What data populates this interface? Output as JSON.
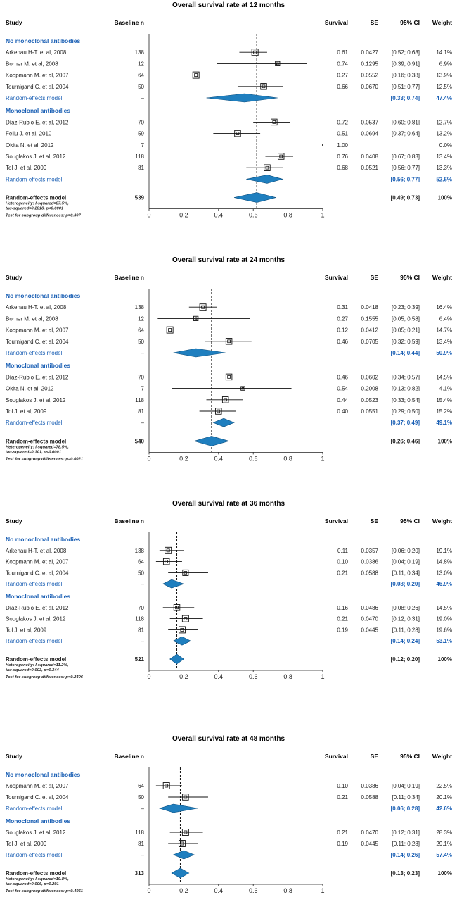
{
  "chart_data": [
    {
      "type": "forest",
      "title": "Overall survival rate at 12 months",
      "xlim": [
        0,
        1
      ],
      "ticks": [
        "0",
        "0.2",
        "0.4",
        "0.6",
        "0.8",
        "1"
      ],
      "reference_line": 0.62,
      "headers": {
        "study": "Study",
        "n": "Baseline n",
        "survival": "Survival",
        "se": "SE",
        "ci": "95% CI",
        "weight": "Weight"
      },
      "rows": [
        {
          "kind": "group",
          "label": "No monoclonal antibodies"
        },
        {
          "kind": "study",
          "label": "Arkenau H-T. et al, 2008",
          "n": "138",
          "est": 0.61,
          "lo": 0.52,
          "hi": 0.68,
          "survival": "0.61",
          "se": "0.0427",
          "ci": "[0.52; 0.68]",
          "weight": "14.1%",
          "box": 1.0
        },
        {
          "kind": "study",
          "label": "Borner M. et al, 2008",
          "n": "12",
          "est": 0.74,
          "lo": 0.39,
          "hi": 0.91,
          "survival": "0.74",
          "se": "0.1295",
          "ci": "[0.39; 0.91]",
          "weight": "6.9%",
          "box": 0.7
        },
        {
          "kind": "study",
          "label": "Koopmann M. et al, 2007",
          "n": "64",
          "est": 0.27,
          "lo": 0.16,
          "hi": 0.38,
          "survival": "0.27",
          "se": "0.0552",
          "ci": "[0.16; 0.38]",
          "weight": "13.9%",
          "box": 1.0
        },
        {
          "kind": "study",
          "label": "Tournigand C. et al, 2004",
          "n": "50",
          "est": 0.66,
          "lo": 0.51,
          "hi": 0.77,
          "survival": "0.66",
          "se": "0.0670",
          "ci": "[0.51; 0.77]",
          "weight": "12.5%",
          "box": 0.95
        },
        {
          "kind": "subtotal",
          "label": "Random-effects model",
          "n": "–",
          "est": 0.55,
          "lo": 0.33,
          "hi": 0.74,
          "ci": "[0.33; 0.74]",
          "weight": "47.4%"
        },
        {
          "kind": "group",
          "label": "Monoclonal antibodies"
        },
        {
          "kind": "study",
          "label": "Díaz-Rubio E. et al, 2012",
          "n": "70",
          "est": 0.72,
          "lo": 0.6,
          "hi": 0.81,
          "survival": "0.72",
          "se": "0.0537",
          "ci": "[0.60; 0.81]",
          "weight": "12.7%",
          "box": 0.95
        },
        {
          "kind": "study",
          "label": "Feliu J. et al, 2010",
          "n": "59",
          "est": 0.51,
          "lo": 0.37,
          "hi": 0.64,
          "survival": "0.51",
          "se": "0.0694",
          "ci": "[0.37; 0.64]",
          "weight": "13.2%",
          "box": 0.95
        },
        {
          "kind": "study",
          "label": "Okita N. et al, 2012",
          "n": "7",
          "est": 1.0,
          "lo": 1.0,
          "hi": 1.0,
          "survival": "1.00",
          "se": "",
          "ci": "",
          "weight": "0.0%",
          "box": 0.0
        },
        {
          "kind": "study",
          "label": "Souglakos J. et al, 2012",
          "n": "118",
          "est": 0.76,
          "lo": 0.67,
          "hi": 0.83,
          "survival": "0.76",
          "se": "0.0408",
          "ci": "[0.67; 0.83]",
          "weight": "13.4%",
          "box": 0.95
        },
        {
          "kind": "study",
          "label": "Tol J. et al, 2009",
          "n": "81",
          "est": 0.68,
          "lo": 0.56,
          "hi": 0.77,
          "survival": "0.68",
          "se": "0.0521",
          "ci": "[0.56; 0.77]",
          "weight": "13.3%",
          "box": 0.95
        },
        {
          "kind": "subtotal",
          "label": "Random-effects model",
          "n": "–",
          "est": 0.68,
          "lo": 0.56,
          "hi": 0.77,
          "ci": "[0.56; 0.77]",
          "weight": "52.6%"
        },
        {
          "kind": "overall",
          "label": "Random-effects model",
          "n": "539",
          "est": 0.62,
          "lo": 0.49,
          "hi": 0.73,
          "ci": "[0.49; 0.73]",
          "weight": "100%"
        }
      ],
      "notes": [
        "Heterogeneity: I-squared=87.5%,",
        "tau-squared=0.2818, p<0.0001",
        "Test for subgroup differences: p=0.307"
      ]
    },
    {
      "type": "forest",
      "title": "Overall survival rate at 24 months",
      "xlim": [
        0,
        1
      ],
      "ticks": [
        "0",
        "0.2",
        "0.4",
        "0.6",
        "0.8",
        "1"
      ],
      "reference_line": 0.36,
      "headers": {
        "study": "Study",
        "n": "Baseline n",
        "survival": "Survival",
        "se": "SE",
        "ci": "95% CI",
        "weight": "Weight"
      },
      "rows": [
        {
          "kind": "group",
          "label": "No monoclonal antibodies"
        },
        {
          "kind": "study",
          "label": "Arkenau H-T. et al, 2008",
          "n": "138",
          "est": 0.31,
          "lo": 0.23,
          "hi": 0.39,
          "survival": "0.31",
          "se": "0.0418",
          "ci": "[0.23; 0.39]",
          "weight": "16.4%",
          "box": 1.0
        },
        {
          "kind": "study",
          "label": "Borner M. et al, 2008",
          "n": "12",
          "est": 0.27,
          "lo": 0.05,
          "hi": 0.58,
          "survival": "0.27",
          "se": "0.1555",
          "ci": "[0.05; 0.58]",
          "weight": "6.4%",
          "box": 0.7
        },
        {
          "kind": "study",
          "label": "Koopmann M. et al, 2007",
          "n": "64",
          "est": 0.12,
          "lo": 0.05,
          "hi": 0.21,
          "survival": "0.12",
          "se": "0.0412",
          "ci": "[0.05; 0.21]",
          "weight": "14.7%",
          "box": 1.0
        },
        {
          "kind": "study",
          "label": "Tournigand C. et al, 2004",
          "n": "50",
          "est": 0.46,
          "lo": 0.32,
          "hi": 0.59,
          "survival": "0.46",
          "se": "0.0705",
          "ci": "[0.32; 0.59]",
          "weight": "13.4%",
          "box": 0.95
        },
        {
          "kind": "subtotal",
          "label": "Random-effects model",
          "n": "–",
          "est": 0.27,
          "lo": 0.14,
          "hi": 0.44,
          "ci": "[0.14; 0.44]",
          "weight": "50.9%"
        },
        {
          "kind": "group",
          "label": "Monoclonal antibodies"
        },
        {
          "kind": "study",
          "label": "Díaz-Rubio E. et al, 2012",
          "n": "70",
          "est": 0.46,
          "lo": 0.34,
          "hi": 0.57,
          "survival": "0.46",
          "se": "0.0602",
          "ci": "[0.34; 0.57]",
          "weight": "14.5%",
          "box": 0.95
        },
        {
          "kind": "study",
          "label": "Okita N. et al, 2012",
          "n": "7",
          "est": 0.54,
          "lo": 0.13,
          "hi": 0.82,
          "survival": "0.54",
          "se": "0.2008",
          "ci": "[0.13; 0.82]",
          "weight": "4.1%",
          "box": 0.6
        },
        {
          "kind": "study",
          "label": "Souglakos J. et al, 2012",
          "n": "118",
          "est": 0.44,
          "lo": 0.33,
          "hi": 0.54,
          "survival": "0.44",
          "se": "0.0523",
          "ci": "[0.33; 0.54]",
          "weight": "15.4%",
          "box": 0.95
        },
        {
          "kind": "study",
          "label": "Tol J. et al, 2009",
          "n": "81",
          "est": 0.4,
          "lo": 0.29,
          "hi": 0.5,
          "survival": "0.40",
          "se": "0.0551",
          "ci": "[0.29; 0.50]",
          "weight": "15.2%",
          "box": 0.95
        },
        {
          "kind": "subtotal",
          "label": "Random-effects model",
          "n": "–",
          "est": 0.43,
          "lo": 0.37,
          "hi": 0.49,
          "ci": "[0.37; 0.49]",
          "weight": "49.1%"
        },
        {
          "kind": "overall",
          "label": "Random-effects model",
          "n": "540",
          "est": 0.36,
          "lo": 0.26,
          "hi": 0.46,
          "ci": "[0.26; 0.46]",
          "weight": "100%"
        }
      ],
      "notes": [
        "Heterogeneity: I-squared=78.5%,",
        "tau-squared=0.101, p<0.0001",
        "Test for subgroup differences: p=0.0021"
      ]
    },
    {
      "type": "forest",
      "title": "Overall survival rate at 36 months",
      "xlim": [
        0,
        1
      ],
      "ticks": [
        "0",
        "0.2",
        "0.4",
        "0.6",
        "0.8",
        "1"
      ],
      "reference_line": 0.16,
      "headers": {
        "study": "Study",
        "n": "Baseline n",
        "survival": "Survival",
        "se": "SE",
        "ci": "95% CI",
        "weight": "Weight"
      },
      "rows": [
        {
          "kind": "group",
          "label": "No monoclonal antibodies"
        },
        {
          "kind": "study",
          "label": "Arkenau H-T. et al, 2008",
          "n": "138",
          "est": 0.11,
          "lo": 0.06,
          "hi": 0.2,
          "survival": "0.11",
          "se": "0.0357",
          "ci": "[0.06; 0.20]",
          "weight": "19.1%",
          "box": 1.0
        },
        {
          "kind": "study",
          "label": "Koopmann M. et al, 2007",
          "n": "64",
          "est": 0.1,
          "lo": 0.04,
          "hi": 0.19,
          "survival": "0.10",
          "se": "0.0386",
          "ci": "[0.04; 0.19]",
          "weight": "14.8%",
          "box": 0.95
        },
        {
          "kind": "study",
          "label": "Tournigand C. et al, 2004",
          "n": "50",
          "est": 0.21,
          "lo": 0.11,
          "hi": 0.34,
          "survival": "0.21",
          "se": "0.0588",
          "ci": "[0.11; 0.34]",
          "weight": "13.0%",
          "box": 0.9
        },
        {
          "kind": "subtotal",
          "label": "Random-effects model",
          "n": "–",
          "est": 0.13,
          "lo": 0.08,
          "hi": 0.2,
          "ci": "[0.08; 0.20]",
          "weight": "46.9%"
        },
        {
          "kind": "group",
          "label": "Monoclonal antibodies"
        },
        {
          "kind": "study",
          "label": "Díaz-Rubio E. et al, 2012",
          "n": "70",
          "est": 0.16,
          "lo": 0.08,
          "hi": 0.26,
          "survival": "0.16",
          "se": "0.0486",
          "ci": "[0.08; 0.26]",
          "weight": "14.5%",
          "box": 0.95
        },
        {
          "kind": "study",
          "label": "Souglakos J. et al, 2012",
          "n": "118",
          "est": 0.21,
          "lo": 0.12,
          "hi": 0.31,
          "survival": "0.21",
          "se": "0.0470",
          "ci": "[0.12; 0.31]",
          "weight": "19.0%",
          "box": 1.0
        },
        {
          "kind": "study",
          "label": "Tol J. et al, 2009",
          "n": "81",
          "est": 0.19,
          "lo": 0.11,
          "hi": 0.28,
          "survival": "0.19",
          "se": "0.0445",
          "ci": "[0.11; 0.28]",
          "weight": "19.6%",
          "box": 1.0
        },
        {
          "kind": "subtotal",
          "label": "Random-effects model",
          "n": "–",
          "est": 0.19,
          "lo": 0.14,
          "hi": 0.24,
          "ci": "[0.14; 0.24]",
          "weight": "53.1%"
        },
        {
          "kind": "overall",
          "label": "Random-effects model",
          "n": "521",
          "est": 0.16,
          "lo": 0.12,
          "hi": 0.2,
          "ci": "[0.12; 0.20]",
          "weight": "100%"
        }
      ],
      "notes": [
        "Heterogeneity: I-squared=11.2%,",
        "tau-squared=0.003, p=0.344",
        "Test for subgroup differences: p=0.2406"
      ]
    },
    {
      "type": "forest",
      "title": "Overall survival rate at 48 months",
      "xlim": [
        0,
        1
      ],
      "ticks": [
        "0",
        "0.2",
        "0.4",
        "0.6",
        "0.8",
        "1"
      ],
      "reference_line": 0.18,
      "headers": {
        "study": "Study",
        "n": "Baseline n",
        "survival": "Survival",
        "se": "SE",
        "ci": "95% CI",
        "weight": "Weight"
      },
      "rows": [
        {
          "kind": "group",
          "label": "No monoclonal antibodies"
        },
        {
          "kind": "study",
          "label": "Koopmann M. et al, 2007",
          "n": "64",
          "est": 0.1,
          "lo": 0.04,
          "hi": 0.19,
          "survival": "0.10",
          "se": "0.0386",
          "ci": "[0.04; 0.19]",
          "weight": "22.5%",
          "box": 1.0
        },
        {
          "kind": "study",
          "label": "Tournigand C. et al, 2004",
          "n": "50",
          "est": 0.21,
          "lo": 0.11,
          "hi": 0.34,
          "survival": "0.21",
          "se": "0.0588",
          "ci": "[0.11; 0.34]",
          "weight": "20.1%",
          "box": 0.95
        },
        {
          "kind": "subtotal",
          "label": "Random-effects model",
          "n": "–",
          "est": 0.14,
          "lo": 0.06,
          "hi": 0.28,
          "ci": "[0.06; 0.28]",
          "weight": "42.6%"
        },
        {
          "kind": "group",
          "label": "Monoclonal antibodies"
        },
        {
          "kind": "study",
          "label": "Souglakos J. et al, 2012",
          "n": "118",
          "est": 0.21,
          "lo": 0.12,
          "hi": 0.31,
          "survival": "0.21",
          "se": "0.0470",
          "ci": "[0.12; 0.31]",
          "weight": "28.3%",
          "box": 1.0
        },
        {
          "kind": "study",
          "label": "Tol J. et al, 2009",
          "n": "81",
          "est": 0.19,
          "lo": 0.11,
          "hi": 0.28,
          "survival": "0.19",
          "se": "0.0445",
          "ci": "[0.11; 0.28]",
          "weight": "29.1%",
          "box": 1.0
        },
        {
          "kind": "subtotal",
          "label": "Random-effects model",
          "n": "–",
          "est": 0.2,
          "lo": 0.14,
          "hi": 0.26,
          "ci": "[0.14; 0.26]",
          "weight": "57.4%"
        },
        {
          "kind": "overall",
          "label": "Random-effects model",
          "n": "313",
          "est": 0.18,
          "lo": 0.13,
          "hi": 0.23,
          "ci": "[0.13; 0.23]",
          "weight": "100%"
        }
      ],
      "notes": [
        "Heterogeneity: I-squared=19.8%,",
        "tau-squared=0.006, p=0.291",
        "Test for subgroup differences: p=0.4951"
      ]
    }
  ],
  "colors": {
    "accent": "#1a5fb4",
    "diamond": "#1f7fbf",
    "ink": "#1a1a1a"
  }
}
